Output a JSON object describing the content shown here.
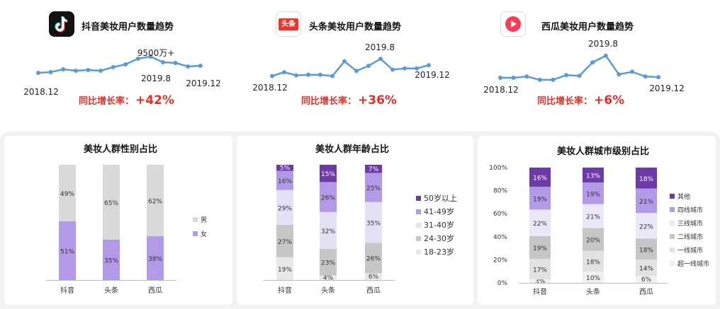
{
  "colors": {
    "line": "#5b9bd5",
    "growth_red": "#e0302a",
    "female": "#b39ae8",
    "male": "#d9d9d9"
  },
  "trends": [
    {
      "title": "抖音美妆用户数量趋势",
      "growth_label": "同比增长率：",
      "growth_value": "+42%",
      "labels": [
        "2018.12",
        "9500万+",
        "2019.8",
        "2019.12"
      ],
      "series": [
        {
          "x": 0,
          "y": 21
        },
        {
          "x": 1,
          "y": 22
        },
        {
          "x": 2,
          "y": 26
        },
        {
          "x": 3,
          "y": 24
        },
        {
          "x": 4,
          "y": 25
        },
        {
          "x": 5,
          "y": 24
        },
        {
          "x": 6,
          "y": 29
        },
        {
          "x": 7,
          "y": 33
        },
        {
          "x": 8,
          "y": 41
        },
        {
          "x": 9,
          "y": 44
        },
        {
          "x": 10,
          "y": 36
        },
        {
          "x": 11,
          "y": 35
        },
        {
          "x": 12,
          "y": 30
        },
        {
          "x": 13,
          "y": 31
        }
      ]
    },
    {
      "title": "头条美妆用户数量趋势",
      "growth_label": "同比增长率：",
      "growth_value": "+36%",
      "labels": [
        "2018.12",
        "2019.8",
        "2019.12"
      ],
      "series": [
        {
          "x": 0,
          "y": 25
        },
        {
          "x": 1,
          "y": 31
        },
        {
          "x": 2,
          "y": 26
        },
        {
          "x": 3,
          "y": 27
        },
        {
          "x": 4,
          "y": 27
        },
        {
          "x": 5,
          "y": 25
        },
        {
          "x": 6,
          "y": 48
        },
        {
          "x": 7,
          "y": 33
        },
        {
          "x": 8,
          "y": 41
        },
        {
          "x": 9,
          "y": 52
        },
        {
          "x": 10,
          "y": 35
        },
        {
          "x": 11,
          "y": 37
        },
        {
          "x": 12,
          "y": 37
        },
        {
          "x": 13,
          "y": 42
        }
      ]
    },
    {
      "title": "西瓜美妆用户数量趋势",
      "growth_label": "同比增长率：",
      "growth_value": "+6%",
      "labels": [
        "2018.12",
        "2019.8",
        "2019.12"
      ],
      "series": [
        {
          "x": 0,
          "y": 21
        },
        {
          "x": 1,
          "y": 21
        },
        {
          "x": 2,
          "y": 23
        },
        {
          "x": 3,
          "y": 18
        },
        {
          "x": 4,
          "y": 18
        },
        {
          "x": 5,
          "y": 25
        },
        {
          "x": 6,
          "y": 24
        },
        {
          "x": 7,
          "y": 44
        },
        {
          "x": 8,
          "y": 54
        },
        {
          "x": 9,
          "y": 26
        },
        {
          "x": 10,
          "y": 30
        },
        {
          "x": 11,
          "y": 23
        },
        {
          "x": 12,
          "y": 22
        }
      ]
    }
  ],
  "chart_data": [
    {
      "type": "line",
      "title": "抖音美妆用户数量趋势",
      "x_labels": [
        "2018.12",
        "2019.8",
        "2019.12"
      ],
      "annotation": "9500万+",
      "note": "values are relative (no y axis printed)"
    },
    {
      "type": "bar",
      "stacked": true,
      "title": "美妆人群性别占比",
      "categories": [
        "抖音",
        "头条",
        "西瓜"
      ],
      "series": [
        {
          "name": "女",
          "values": [
            51,
            35,
            38
          ],
          "labels": [
            "51%",
            "35%",
            "38%"
          ],
          "color": "#b39ae8"
        },
        {
          "name": "男",
          "values": [
            49,
            65,
            62
          ],
          "labels": [
            "49%",
            "65%",
            "62%"
          ],
          "color": "#d9d9d9"
        }
      ],
      "legend_order": [
        "男",
        "女"
      ],
      "legend": "right"
    },
    {
      "type": "bar",
      "stacked": true,
      "title": "美妆人群年龄占比",
      "categories": [
        "抖音",
        "头条",
        "西瓜"
      ],
      "series": [
        {
          "name": "18-23岁",
          "values": [
            19,
            4,
            6
          ],
          "labels": [
            "19%",
            "4%",
            "6%"
          ],
          "color": "#e8e8e8"
        },
        {
          "name": "24-30岁",
          "values": [
            27,
            23,
            26
          ],
          "labels": [
            "27%",
            "23%",
            "26%"
          ],
          "color": "#c6c6c6"
        },
        {
          "name": "31-40岁",
          "values": [
            29,
            32,
            35
          ],
          "labels": [
            "29%",
            "32%",
            "35%"
          ],
          "color": "#e6e0f7"
        },
        {
          "name": "41-49岁",
          "values": [
            16,
            26,
            25
          ],
          "labels": [
            "16%",
            "26%",
            "25%"
          ],
          "color": "#b39ae8"
        },
        {
          "name": "50岁以上",
          "values": [
            5,
            15,
            7
          ],
          "labels": [
            "5%",
            "15%",
            "7%"
          ],
          "color": "#6e3aa8"
        }
      ],
      "legend_order": [
        "50岁以上",
        "41-49岁",
        "31-40岁",
        "24-30岁",
        "18-23岁"
      ],
      "legend": "right"
    },
    {
      "type": "bar",
      "stacked": true,
      "title": "美妆人群城市级别占比",
      "categories": [
        "抖音",
        "头条",
        "西瓜"
      ],
      "y_ticks": [
        "0%",
        "20%",
        "40%",
        "60%",
        "80%",
        "100%"
      ],
      "ylim": [
        0,
        100
      ],
      "series": [
        {
          "name": "超一线城市",
          "values": [
            3,
            10,
            6
          ],
          "labels": [
            "3%",
            "10%",
            "6%"
          ],
          "color": "#f0f0f0"
        },
        {
          "name": "一线城市",
          "values": [
            17,
            18,
            14
          ],
          "labels": [
            "17%",
            "18%",
            "14%"
          ],
          "color": "#e2e2e2"
        },
        {
          "name": "二线城市",
          "values": [
            19,
            20,
            18
          ],
          "labels": [
            "19%",
            "20%",
            "18%"
          ],
          "color": "#c6c6c6"
        },
        {
          "name": "三线城市",
          "values": [
            22,
            21,
            22
          ],
          "labels": [
            "22%",
            "21%",
            "22%"
          ],
          "color": "#ece8fa"
        },
        {
          "name": "四线城市",
          "values": [
            19,
            19,
            21
          ],
          "labels": [
            "19%",
            "19%",
            "21%"
          ],
          "color": "#b39ae8"
        },
        {
          "name": "其他",
          "values": [
            16,
            13,
            18
          ],
          "labels": [
            "16%",
            "13%",
            "18%"
          ],
          "color": "#6e3aa8"
        }
      ],
      "legend_order": [
        "其他",
        "四线城市",
        "三线城市",
        "二线城市",
        "一线城市",
        "超一线城市"
      ],
      "legend": "right"
    }
  ]
}
